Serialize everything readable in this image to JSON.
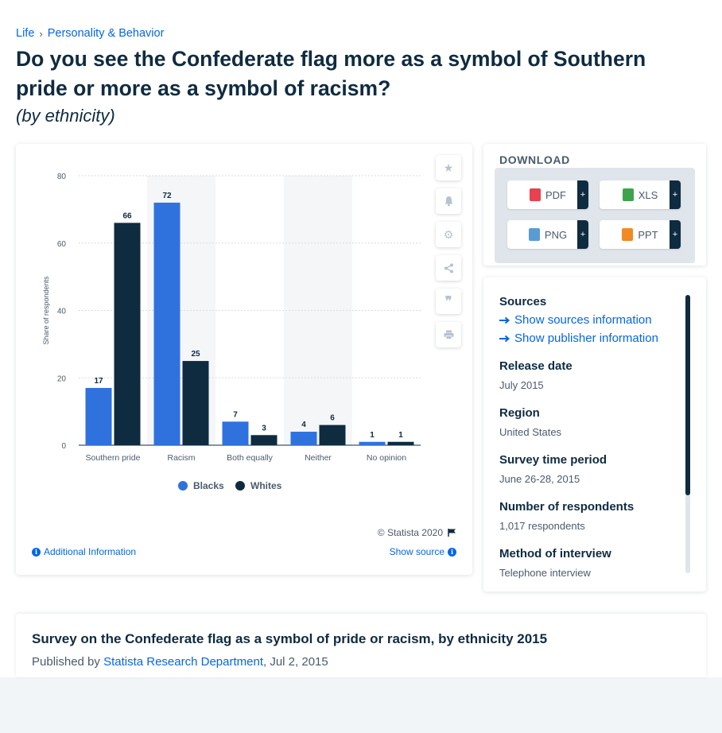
{
  "breadcrumb": {
    "items": [
      "Life",
      "Personality & Behavior"
    ],
    "separator": "›"
  },
  "page": {
    "title": "Do you see the Confederate flag more as a symbol of Southern pride or more as a symbol of racism?",
    "subtitle": "(by ethnicity)"
  },
  "colors": {
    "blacks": "#2f72de",
    "whites": "#0f2b40",
    "accent": "#0666e5"
  },
  "chart_data": {
    "type": "bar",
    "categories": [
      "Southern pride",
      "Racism",
      "Both equally",
      "Neither",
      "No opinion"
    ],
    "series": [
      {
        "name": "Blacks",
        "values": [
          17,
          72,
          7,
          4,
          1
        ]
      },
      {
        "name": "Whites",
        "values": [
          66,
          25,
          3,
          6,
          1
        ]
      }
    ],
    "ylabel": "Share of respondents",
    "ylim": [
      0,
      80
    ],
    "yticks": [
      0,
      20,
      40,
      60,
      80
    ],
    "grid": true,
    "legend": "bottom-center",
    "highlighted_category": "Racism"
  },
  "chart_card": {
    "credit": "© Statista 2020",
    "additional_info": "Additional Information",
    "show_source": "Show source",
    "tools": [
      "star-icon",
      "bell-icon",
      "gear-icon",
      "share-icon",
      "quote-icon",
      "print-icon"
    ]
  },
  "download": {
    "title": "DOWNLOAD",
    "buttons": [
      {
        "label": "PDF",
        "color": "#e8414f"
      },
      {
        "label": "XLS",
        "color": "#3fa34d"
      },
      {
        "label": "PNG",
        "color": "#5b9bd5"
      },
      {
        "label": "PPT",
        "color": "#f08a24"
      }
    ],
    "plus": "+"
  },
  "info": {
    "sources_label": "Sources",
    "show_sources": "Show sources information",
    "show_publisher": "Show publisher information",
    "release_date_label": "Release date",
    "release_date": "July 2015",
    "region_label": "Region",
    "region": "United States",
    "survey_period_label": "Survey time period",
    "survey_period": "June 26-28, 2015",
    "respondents_label": "Number of respondents",
    "respondents": "1,017 respondents",
    "method_label": "Method of interview",
    "method": "Telephone interview"
  },
  "bottom": {
    "title": "Survey on the Confederate flag as a symbol of pride or racism, by ethnicity 2015",
    "published_by": "Published by ",
    "publisher": "Statista Research Department",
    "date": ", Jul 2, 2015"
  }
}
